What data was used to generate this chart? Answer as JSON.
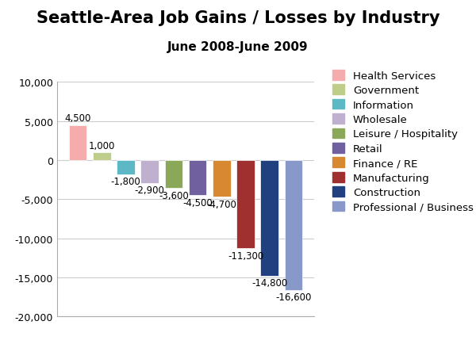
{
  "title": "Seattle-Area Job Gains / Losses by Industry",
  "subtitle": "June 2008-June 2009",
  "categories": [
    "Health Services",
    "Government",
    "Information",
    "Wholesale",
    "Leisure / Hospitality",
    "Retail",
    "Finance / RE",
    "Manufacturing",
    "Construction",
    "Professional / Business"
  ],
  "values": [
    4500,
    1000,
    -1800,
    -2900,
    -3600,
    -4500,
    -4700,
    -11300,
    -14800,
    -16600
  ],
  "colors": [
    "#F4ACAC",
    "#BFCD8A",
    "#5BB8C4",
    "#C0B0D0",
    "#8BA858",
    "#7060A0",
    "#D88830",
    "#A03030",
    "#204080",
    "#8898C8"
  ],
  "ylim": [
    -20000,
    10000
  ],
  "yticks": [
    -20000,
    -15000,
    -10000,
    -5000,
    0,
    5000,
    10000
  ],
  "ytick_labels": [
    "-20,000",
    "-15,000",
    "-10,000",
    "-5,000",
    "0",
    "5,000",
    "10,000"
  ],
  "background_color": "#ffffff",
  "title_fontsize": 15,
  "subtitle_fontsize": 11,
  "label_fontsize": 8.5,
  "legend_fontsize": 9.5,
  "ytick_fontsize": 9
}
